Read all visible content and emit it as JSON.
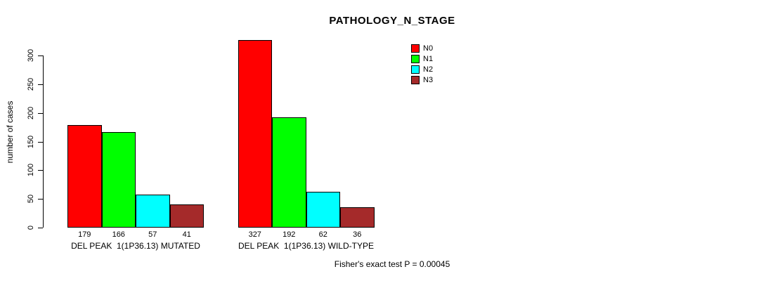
{
  "chart_data": {
    "type": "bar",
    "title": "PATHOLOGY_N_STAGE",
    "xlabel": "",
    "ylabel": "number of cases",
    "ylim": [
      0,
      300
    ],
    "yticks": [
      0,
      50,
      100,
      150,
      200,
      250,
      300
    ],
    "grid": false,
    "legend_position": "top-right",
    "bar_value_labels": true,
    "categories": [
      "DEL PEAK  1(1P36.13) MUTATED",
      "DEL PEAK  1(1P36.13) WILD-TYPE"
    ],
    "series": [
      {
        "name": "N0",
        "color": "#FF0000",
        "values": [
          179,
          327
        ]
      },
      {
        "name": "N1",
        "color": "#00FF00",
        "values": [
          166,
          192
        ]
      },
      {
        "name": "N2",
        "color": "#00FFFF",
        "values": [
          57,
          62
        ]
      },
      {
        "name": "N3",
        "color": "#A52A2A",
        "values": [
          41,
          36
        ]
      }
    ],
    "footer": "Fisher's exact test P = 0.00045"
  }
}
